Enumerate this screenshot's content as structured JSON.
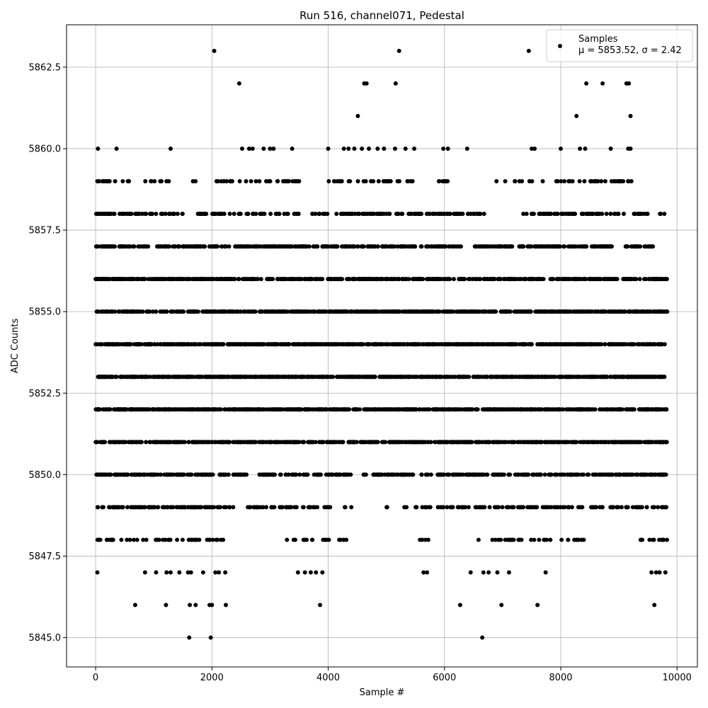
{
  "chart_data": {
    "type": "scatter",
    "title": "Run 516, channel071, Pedestal",
    "xlabel": "Sample #",
    "ylabel": "ADC Counts",
    "xlim": [
      -500,
      10350
    ],
    "ylim": [
      5844.1,
      5863.8
    ],
    "xticks": [
      0,
      2000,
      4000,
      6000,
      8000,
      10000
    ],
    "xtick_labels": [
      "0",
      "2000",
      "4000",
      "6000",
      "8000",
      "10000"
    ],
    "yticks": [
      5845.0,
      5847.5,
      5850.0,
      5852.5,
      5855.0,
      5857.5,
      5860.0,
      5862.5
    ],
    "ytick_labels": [
      "5845.0",
      "5847.5",
      "5850.0",
      "5852.5",
      "5855.0",
      "5857.5",
      "5860.0",
      "5862.5"
    ],
    "grid": true,
    "legend_position": "top-right",
    "series": [
      {
        "name": "Samples",
        "stats_label": "μ = 5853.52, σ = 2.42",
        "color": "#000000",
        "sample_range": [
          0,
          9830
        ],
        "points": [
          [
            1610,
            5845
          ],
          [
            1980,
            5845
          ],
          [
            6650,
            5845
          ],
          [
            680,
            5846
          ],
          [
            1210,
            5846
          ],
          [
            1620,
            5846
          ],
          [
            1720,
            5846
          ],
          [
            1960,
            5846
          ],
          [
            2000,
            5846
          ],
          [
            2240,
            5846
          ],
          [
            3860,
            5846
          ],
          [
            6270,
            5846
          ],
          [
            6980,
            5846
          ],
          [
            7600,
            5846
          ],
          [
            9610,
            5846
          ],
          [
            30,
            5847
          ],
          [
            850,
            5847
          ],
          [
            1040,
            5847
          ],
          [
            1220,
            5847
          ],
          [
            1290,
            5847
          ],
          [
            1440,
            5847
          ],
          [
            1590,
            5847
          ],
          [
            1640,
            5847
          ],
          [
            1850,
            5847
          ],
          [
            2060,
            5847
          ],
          [
            2120,
            5847
          ],
          [
            2230,
            5847
          ],
          [
            3480,
            5847
          ],
          [
            3600,
            5847
          ],
          [
            3700,
            5847
          ],
          [
            3790,
            5847
          ],
          [
            3900,
            5847
          ],
          [
            5640,
            5847
          ],
          [
            5700,
            5847
          ],
          [
            6450,
            5847
          ],
          [
            6670,
            5847
          ],
          [
            6760,
            5847
          ],
          [
            6910,
            5847
          ],
          [
            7110,
            5847
          ],
          [
            7740,
            5847
          ],
          [
            9560,
            5847
          ],
          [
            9640,
            5847
          ],
          [
            9700,
            5847
          ],
          [
            9800,
            5847
          ],
          [
            40,
            5860
          ],
          [
            360,
            5860
          ],
          [
            1290,
            5860
          ],
          [
            2520,
            5860
          ],
          [
            2640,
            5860
          ],
          [
            2700,
            5860
          ],
          [
            2890,
            5860
          ],
          [
            3000,
            5860
          ],
          [
            3060,
            5860
          ],
          [
            3380,
            5860
          ],
          [
            4000,
            5860
          ],
          [
            4270,
            5860
          ],
          [
            4350,
            5860
          ],
          [
            4450,
            5860
          ],
          [
            4580,
            5860
          ],
          [
            4700,
            5860
          ],
          [
            4850,
            5860
          ],
          [
            4960,
            5860
          ],
          [
            5150,
            5860
          ],
          [
            5330,
            5860
          ],
          [
            5480,
            5860
          ],
          [
            5980,
            5860
          ],
          [
            6060,
            5860
          ],
          [
            6390,
            5860
          ],
          [
            7500,
            5860
          ],
          [
            7550,
            5860
          ],
          [
            8000,
            5860
          ],
          [
            8330,
            5860
          ],
          [
            8420,
            5860
          ],
          [
            8860,
            5860
          ],
          [
            9160,
            5860
          ],
          [
            9200,
            5860
          ],
          [
            4510,
            5861
          ],
          [
            8270,
            5861
          ],
          [
            9200,
            5861
          ],
          [
            2470,
            5862
          ],
          [
            4620,
            5862
          ],
          [
            4660,
            5862
          ],
          [
            5160,
            5862
          ],
          [
            8440,
            5862
          ],
          [
            8720,
            5862
          ],
          [
            9130,
            5862
          ],
          [
            9170,
            5862
          ],
          [
            2040,
            5863
          ],
          [
            5220,
            5863
          ],
          [
            7450,
            5863
          ]
        ],
        "dense_rows": [
          {
            "value": 5848,
            "count": 110,
            "gaps": [
              [
                2200,
                3200
              ],
              [
                4350,
                5550
              ],
              [
                5760,
                6520
              ],
              [
                8400,
                9300
              ]
            ]
          },
          {
            "value": 5849,
            "count": 300,
            "gaps": [
              [
                2400,
                2600
              ],
              [
                4050,
                4250
              ],
              [
                4400,
                5000
              ],
              [
                5100,
                5250
              ],
              [
                5350,
                5500
              ]
            ]
          },
          {
            "value": 5850,
            "count": 500,
            "gaps": [
              [
                2600,
                2800
              ],
              [
                4400,
                4600
              ],
              [
                5500,
                5600
              ]
            ]
          },
          {
            "value": 5851,
            "count": 600,
            "gaps": []
          },
          {
            "value": 5852,
            "count": 700,
            "gaps": []
          },
          {
            "value": 5853,
            "count": 750,
            "gaps": []
          },
          {
            "value": 5854,
            "count": 750,
            "gaps": []
          },
          {
            "value": 5855,
            "count": 700,
            "gaps": []
          },
          {
            "value": 5856,
            "count": 600,
            "gaps": [
              [
                3900,
                3980
              ]
            ]
          },
          {
            "value": 5857,
            "count": 500,
            "gaps": [
              [
                2300,
                2400
              ],
              [
                6300,
                6500
              ],
              [
                8900,
                9100
              ],
              [
                9600,
                9830
              ]
            ]
          },
          {
            "value": 5858,
            "count": 300,
            "gaps": [
              [
                1500,
                1700
              ],
              [
                3500,
                3700
              ],
              [
                6700,
                7350
              ],
              [
                9500,
                9700
              ]
            ]
          },
          {
            "value": 5859,
            "count": 130,
            "gaps": [
              [
                600,
                780
              ],
              [
                1350,
                1650
              ],
              [
                1800,
                2050
              ],
              [
                3500,
                3950
              ],
              [
                5500,
                5850
              ],
              [
                6100,
                6800
              ],
              [
                9300,
                9830
              ]
            ]
          }
        ]
      }
    ]
  }
}
